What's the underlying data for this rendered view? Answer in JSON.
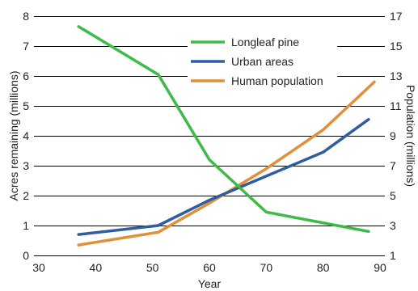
{
  "chart_data": {
    "type": "line",
    "xlabel": "Year",
    "ylabel_left": "Acres remaining (millions)",
    "ylabel_right": "Population (millions)",
    "xlim": [
      30,
      90
    ],
    "ylim_left": [
      0,
      8
    ],
    "ylim_right": [
      1,
      17
    ],
    "x_ticks": [
      30,
      40,
      50,
      60,
      70,
      80,
      90
    ],
    "y_left_ticks": [
      0,
      1,
      2,
      3,
      4,
      5,
      6,
      7,
      8
    ],
    "y_right_ticks": [
      1,
      3,
      5,
      7,
      9,
      11,
      13,
      15,
      17
    ],
    "grid": "horizontal",
    "legend_position": "top-center",
    "series": [
      {
        "name": "Longleaf pine",
        "axis": "left",
        "color": "#3dbb48",
        "x": [
          37,
          51,
          60,
          70,
          88
        ],
        "y": [
          7.65,
          6.05,
          3.2,
          1.45,
          0.8
        ]
      },
      {
        "name": "Urban areas",
        "axis": "left",
        "color": "#2f5d9f",
        "x": [
          37,
          51,
          60,
          70,
          80,
          88
        ],
        "y": [
          0.7,
          1.0,
          1.85,
          2.65,
          3.45,
          4.55
        ]
      },
      {
        "name": "Human population",
        "axis": "right",
        "color": "#e08f3a",
        "x": [
          37,
          51,
          60,
          70,
          80,
          89
        ],
        "y": [
          1.7,
          2.55,
          4.5,
          6.8,
          9.4,
          12.6
        ]
      }
    ]
  }
}
